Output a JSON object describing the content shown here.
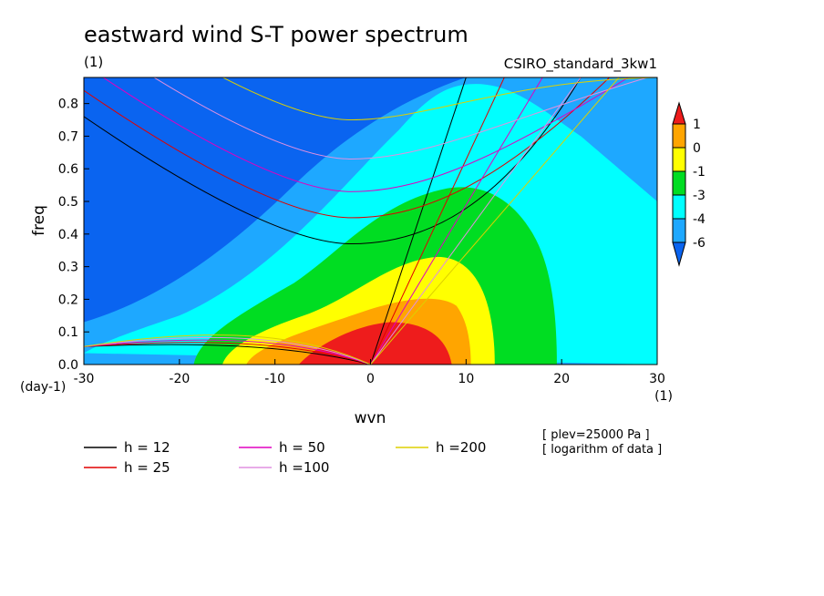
{
  "header": {
    "title": "eastward wind S-T power spectrum",
    "units_left": "(1)",
    "run_name": "CSIRO_standard_3kw1"
  },
  "notes": [
    "[ plev=25000 Pa ]",
    "[ logarithm of data ]"
  ],
  "colors": {
    "red": "#ee1c1c",
    "orange": "#ffa500",
    "yellow": "#ffff00",
    "green": "#00dd22",
    "cyan": "#00ffff",
    "lightblue": "#1ea8ff",
    "blue": "#0a64f0",
    "background": "#0a4ff0"
  },
  "chart_data": {
    "type": "heatmap",
    "title": "eastward wind S-T power spectrum",
    "xlabel": "wvn",
    "ylabel": "freq",
    "x_units": "(1)",
    "y_units": "(day-1)",
    "xlim": [
      -30,
      30
    ],
    "ylim": [
      0,
      0.88
    ],
    "x_ticks": [
      "-30",
      "-20",
      "-10",
      "0",
      "10",
      "20",
      "30"
    ],
    "y_ticks": [
      "0.0",
      "0.1",
      "0.2",
      "0.3",
      "0.4",
      "0.5",
      "0.6",
      "0.7",
      "0.8"
    ],
    "colorbar": {
      "labels": [
        "1",
        "0",
        "-1",
        "-3",
        "-4",
        "-6"
      ],
      "colors": [
        "#ee1c1c",
        "#ffa500",
        "#ffff00",
        "#00dd22",
        "#00ffff",
        "#1ea8ff",
        "#0a64f0"
      ]
    },
    "contour_fields": [
      {
        "level": "red",
        "center": [
          0,
          0
        ],
        "half_width": 8,
        "height": 0.13
      },
      {
        "level": "orange",
        "center": [
          0,
          0
        ],
        "half_width": 10,
        "height": 0.22
      },
      {
        "level": "yellow",
        "center": [
          0,
          0
        ],
        "half_width": 13,
        "height": 0.33
      },
      {
        "level": "green",
        "center": [
          0,
          0
        ],
        "half_width": 19,
        "height": 0.55
      },
      {
        "level": "cyan",
        "center": [
          0,
          0
        ],
        "half_width": 25,
        "height": 0.86
      }
    ],
    "dispersion_curves": [
      {
        "name": "h = 12",
        "color": "#000000"
      },
      {
        "name": "h = 25",
        "color": "#e00000"
      },
      {
        "name": "h = 50",
        "color": "#e000c0"
      },
      {
        "name": "h =100",
        "color": "#e090e0"
      },
      {
        "name": "h =200",
        "color": "#ddd000"
      }
    ]
  }
}
